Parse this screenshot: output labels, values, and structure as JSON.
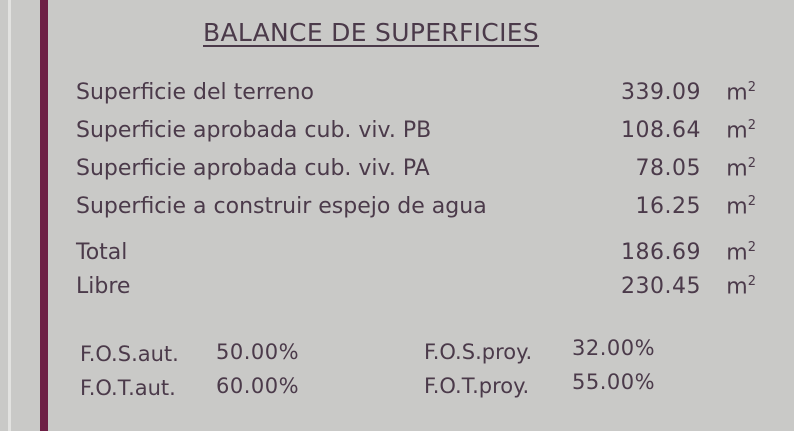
{
  "title": "BALANCE DE SUPERFICIES",
  "rows": [
    {
      "label": "Superficie del terreno",
      "value": "339.09",
      "unit": "m",
      "exp": "2"
    },
    {
      "label": "Superficie aprobada cub. viv. PB",
      "value": "108.64",
      "unit": "m",
      "exp": "2"
    },
    {
      "label": "Superficie aprobada cub. viv. PA",
      "value": "78.05",
      "unit": "m",
      "exp": "2"
    },
    {
      "label": "Superficie a construir espejo de agua",
      "value": "16.25",
      "unit": "m",
      "exp": "2"
    },
    {
      "label": "Total",
      "value": "186.69",
      "unit": "m",
      "exp": "2"
    },
    {
      "label": "Libre",
      "value": "230.45",
      "unit": "m",
      "exp": "2"
    }
  ],
  "factors": {
    "fos_aut": {
      "label": "F.O.S.aut.",
      "value": "50.00%"
    },
    "fot_aut": {
      "label": "F.O.T.aut.",
      "value": "60.00%"
    },
    "fos_proy": {
      "label": "F.O.S.proy.",
      "value": "32.00%"
    },
    "fot_proy": {
      "label": "F.O.T.proy.",
      "value": "55.00%"
    }
  },
  "colors": {
    "paper": "#c9c9c7",
    "ink": "#4b3a4a",
    "border": "#6e1f45"
  }
}
